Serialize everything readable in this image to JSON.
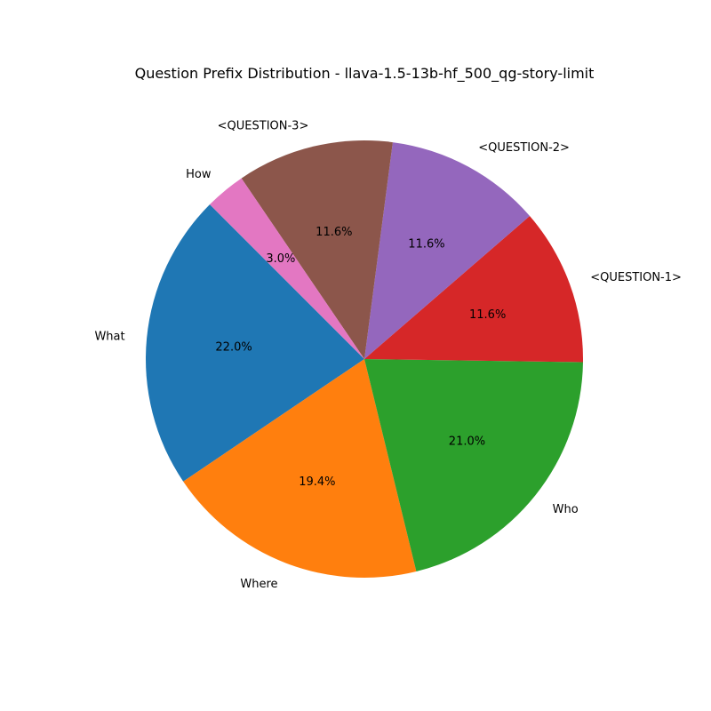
{
  "chart_data": {
    "type": "pie",
    "title": "Question Prefix Distribution - llava-1.5-13b-hf_500_qg-story-limit",
    "start_angle_deg": 135,
    "direction": "counterclockwise",
    "slices": [
      {
        "label": "What",
        "value": 22.0,
        "pct_text": "22.0%",
        "color": "#1f77b4"
      },
      {
        "label": "Where",
        "value": 19.4,
        "pct_text": "19.4%",
        "color": "#ff7f0e"
      },
      {
        "label": "Who",
        "value": 21.0,
        "pct_text": "21.0%",
        "color": "#2ca02c"
      },
      {
        "label": "<QUESTION-1>",
        "value": 11.6,
        "pct_text": "11.6%",
        "color": "#d62728"
      },
      {
        "label": "<QUESTION-2>",
        "value": 11.6,
        "pct_text": "11.6%",
        "color": "#9467bd"
      },
      {
        "label": "<QUESTION-3>",
        "value": 11.6,
        "pct_text": "11.6%",
        "color": "#8c564b"
      },
      {
        "label": "How",
        "value": 3.0,
        "pct_text": "3.0%",
        "color": "#e377c2"
      }
    ]
  }
}
